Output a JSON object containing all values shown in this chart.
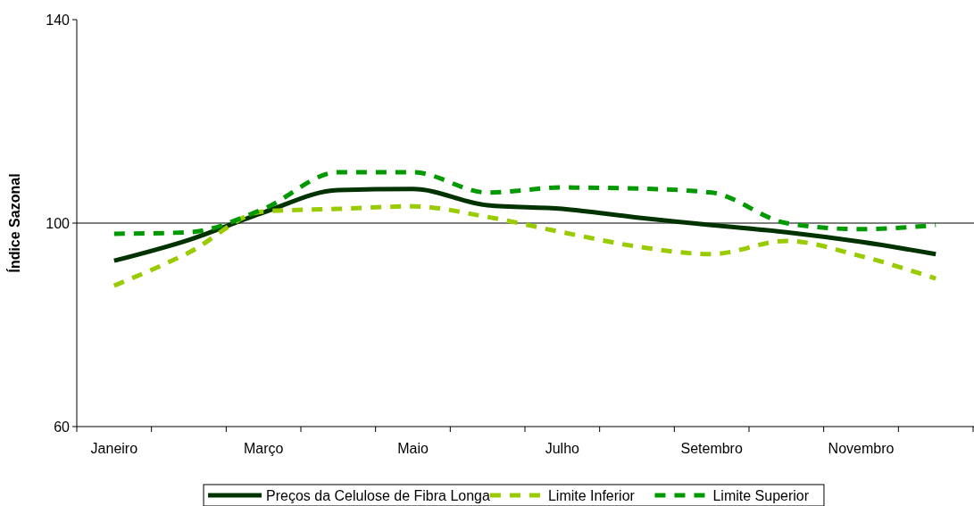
{
  "chart_data": {
    "type": "line",
    "ylabel": "Índice Sazonal",
    "categories": [
      "Janeiro",
      null,
      "Março",
      null,
      "Maio",
      null,
      "Julho",
      null,
      "Setembro",
      null,
      "Novembro",
      null
    ],
    "series": [
      {
        "name": "Preços da Celulose de Fibra Longa",
        "color": "#003300",
        "line_style": "solid",
        "values": [
          92.6,
          96.7,
          102.1,
          106.5,
          106.7,
          103.5,
          102.8,
          101.1,
          99.6,
          98.2,
          96.3,
          93.9
        ]
      },
      {
        "name": "Limite Inferior",
        "color": "#99cc00",
        "line_style": "dashed",
        "values": [
          87.7,
          94.2,
          102.3,
          102.8,
          103.3,
          101.2,
          98.2,
          95.4,
          93.9,
          96.5,
          93.5,
          89.1
        ]
      },
      {
        "name": "Limite Superior",
        "color": "#009900",
        "line_style": "dashed",
        "values": [
          97.9,
          98.2,
          102.8,
          110,
          110,
          106,
          107,
          106.8,
          106,
          100,
          98.8,
          99.6
        ]
      }
    ],
    "ylim": [
      60,
      140
    ],
    "yticks": [
      60,
      100,
      140
    ],
    "grid": "y",
    "legend": "bottom",
    "marker": "none"
  }
}
